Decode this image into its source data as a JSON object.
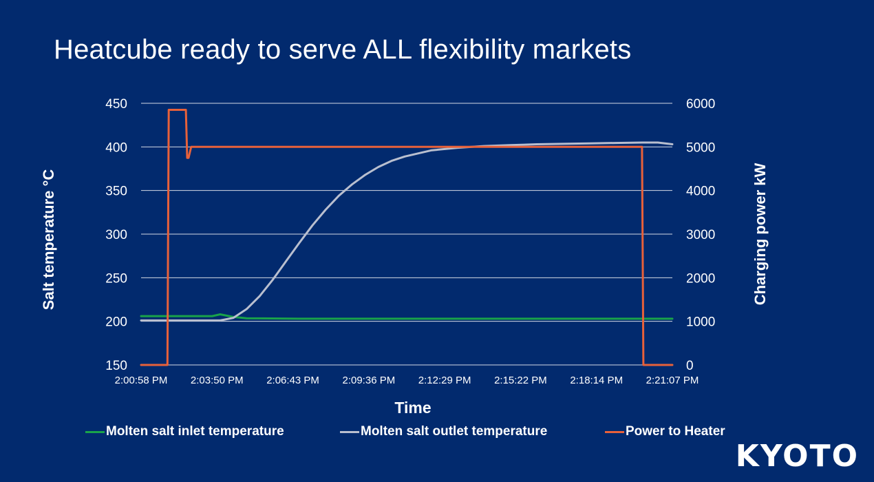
{
  "slide": {
    "title": "Heatcube ready to serve ALL flexibility markets",
    "logo": "KYOTO"
  },
  "chart_data": {
    "type": "line",
    "xlabel": "Time",
    "ylabel_left": "Salt temperature °C",
    "ylabel_right": "Charging power kW",
    "x_tick_labels": [
      "2:00:58 PM",
      "2:03:50 PM",
      "2:06:43 PM",
      "2:09:36 PM",
      "2:12:29 PM",
      "2:15:22 PM",
      "2:18:14 PM",
      "2:21:07 PM"
    ],
    "x_range_minutes": [
      0,
      20.15
    ],
    "y_left_lim": [
      150,
      450
    ],
    "y_left_ticks": [
      150,
      200,
      250,
      300,
      350,
      400,
      450
    ],
    "y_right_lim": [
      0,
      6000
    ],
    "y_right_ticks": [
      0,
      1000,
      2000,
      3000,
      4000,
      5000,
      6000
    ],
    "grid": true,
    "legend_position": "bottom",
    "series": [
      {
        "name": "Molten salt inlet temperature",
        "axis": "left",
        "color": "#1aa34a",
        "x": [
          0,
          2.0,
          2.7,
          3.0,
          3.5,
          4.0,
          6.0,
          10.0,
          15.0,
          20.15
        ],
        "y": [
          206,
          206,
          206,
          208,
          205,
          203.5,
          203,
          203,
          203,
          203
        ]
      },
      {
        "name": "Molten salt outlet temperature",
        "axis": "left",
        "color": "#b9bfcf",
        "x": [
          0,
          2.0,
          3.0,
          3.5,
          4.0,
          4.5,
          5.0,
          5.5,
          6.0,
          6.5,
          7.0,
          7.5,
          8.0,
          8.5,
          9.0,
          9.5,
          10.0,
          11.0,
          12.0,
          13.0,
          14.0,
          15.0,
          16.0,
          17.0,
          18.0,
          19.0,
          19.6,
          20.15
        ],
        "y": [
          201,
          201,
          201,
          204,
          214,
          229,
          248,
          269,
          290,
          310,
          328,
          344,
          357,
          368,
          377,
          384,
          389,
          396,
          399,
          401,
          402,
          403,
          403.5,
          404,
          404.5,
          405,
          405,
          403
        ]
      },
      {
        "name": "Power to Heater",
        "axis": "right",
        "color": "#e8613a",
        "x": [
          0,
          1.0,
          1.05,
          1.7,
          1.75,
          1.8,
          1.9,
          1.95,
          19.0,
          19.05,
          20.15
        ],
        "y": [
          0,
          0,
          5850,
          5850,
          4750,
          4750,
          5000,
          5000,
          5000,
          0,
          0
        ]
      }
    ]
  }
}
